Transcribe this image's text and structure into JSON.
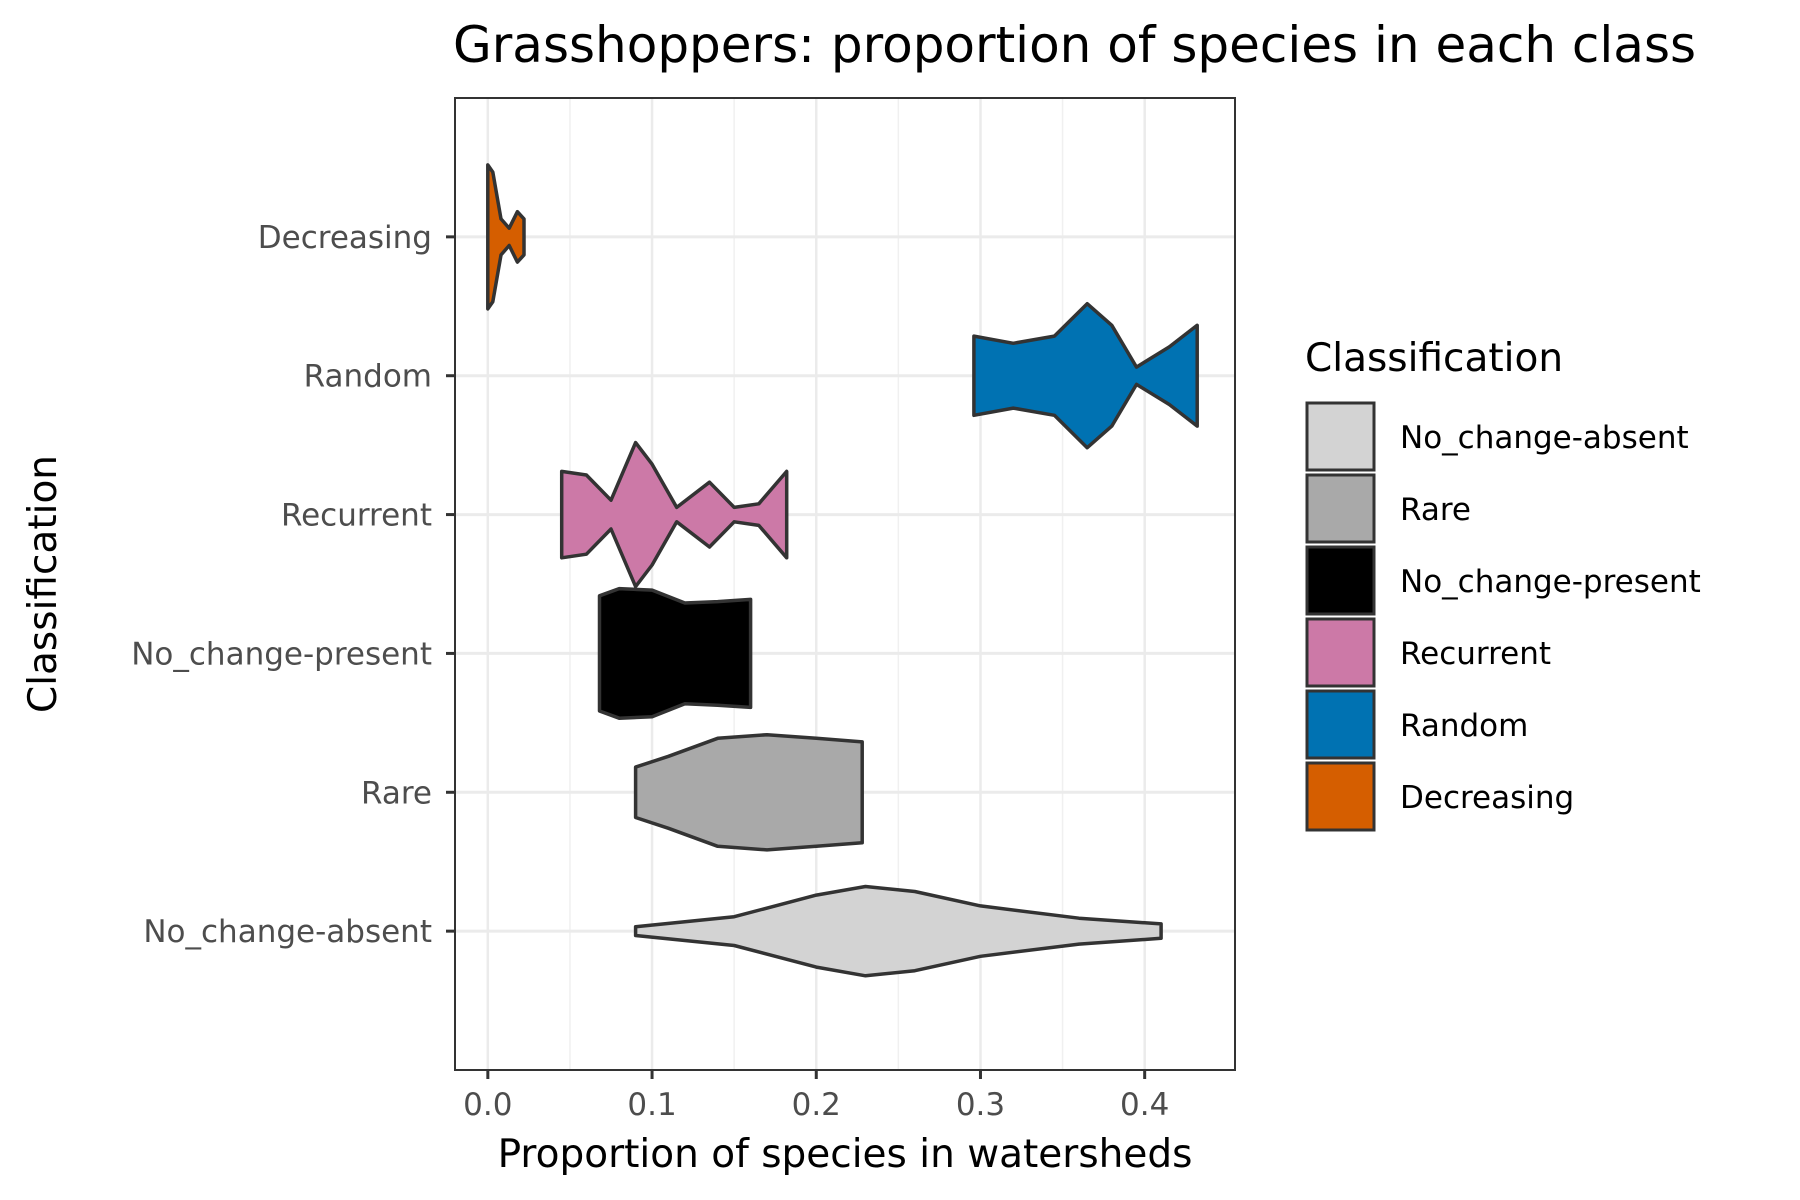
{
  "chart_data": {
    "type": "violin",
    "orientation": "horizontal",
    "title": "Grasshoppers: proportion of species in each class",
    "xlabel": "Proportion of species in watersheds",
    "ylabel": "Classification",
    "xlim": [
      -0.02,
      0.455
    ],
    "x_ticks": [
      0.0,
      0.1,
      0.2,
      0.3,
      0.4
    ],
    "x_tick_labels": [
      "0.0",
      "0.1",
      "0.2",
      "0.3",
      "0.4"
    ],
    "grid": true,
    "categories": [
      "No_change-absent",
      "Rare",
      "No_change-present",
      "Recurrent",
      "Random",
      "Decreasing"
    ],
    "legend_title": "Classification",
    "legend_position": "right",
    "series": [
      {
        "name": "No_change-absent",
        "color": "#d3d3d3",
        "min": 0.09,
        "max": 0.41,
        "density": [
          [
            0.09,
            0.06
          ],
          [
            0.15,
            0.2
          ],
          [
            0.2,
            0.5
          ],
          [
            0.23,
            0.62
          ],
          [
            0.26,
            0.55
          ],
          [
            0.3,
            0.35
          ],
          [
            0.36,
            0.18
          ],
          [
            0.41,
            0.1
          ]
        ]
      },
      {
        "name": "Rare",
        "color": "#a9a9a9",
        "min": 0.09,
        "max": 0.228,
        "density": [
          [
            0.09,
            0.35
          ],
          [
            0.11,
            0.5
          ],
          [
            0.14,
            0.75
          ],
          [
            0.17,
            0.8
          ],
          [
            0.2,
            0.75
          ],
          [
            0.228,
            0.7
          ]
        ]
      },
      {
        "name": "No_change-present",
        "color": "#000000",
        "min": 0.068,
        "max": 0.16,
        "density": [
          [
            0.068,
            0.8
          ],
          [
            0.08,
            0.9
          ],
          [
            0.1,
            0.88
          ],
          [
            0.12,
            0.7
          ],
          [
            0.14,
            0.72
          ],
          [
            0.16,
            0.75
          ]
        ]
      },
      {
        "name": "Recurrent",
        "color": "#cc79a7",
        "min": 0.045,
        "max": 0.182,
        "density": [
          [
            0.045,
            0.6
          ],
          [
            0.06,
            0.55
          ],
          [
            0.075,
            0.2
          ],
          [
            0.09,
            1.0
          ],
          [
            0.1,
            0.7
          ],
          [
            0.115,
            0.1
          ],
          [
            0.135,
            0.45
          ],
          [
            0.15,
            0.1
          ],
          [
            0.165,
            0.15
          ],
          [
            0.182,
            0.6
          ]
        ]
      },
      {
        "name": "Random",
        "color": "#0072b2",
        "min": 0.296,
        "max": 0.432,
        "density": [
          [
            0.296,
            0.55
          ],
          [
            0.32,
            0.45
          ],
          [
            0.345,
            0.55
          ],
          [
            0.365,
            1.0
          ],
          [
            0.38,
            0.7
          ],
          [
            0.395,
            0.12
          ],
          [
            0.415,
            0.4
          ],
          [
            0.432,
            0.7
          ]
        ]
      },
      {
        "name": "Decreasing",
        "color": "#d55e00",
        "min": 0.0,
        "max": 0.022,
        "density": [
          [
            0.0,
            1.0
          ],
          [
            0.003,
            0.9
          ],
          [
            0.008,
            0.25
          ],
          [
            0.013,
            0.12
          ],
          [
            0.018,
            0.35
          ],
          [
            0.022,
            0.25
          ]
        ]
      }
    ],
    "legend_order": [
      "No_change-absent",
      "Rare",
      "No_change-present",
      "Recurrent",
      "Random",
      "Decreasing"
    ]
  }
}
